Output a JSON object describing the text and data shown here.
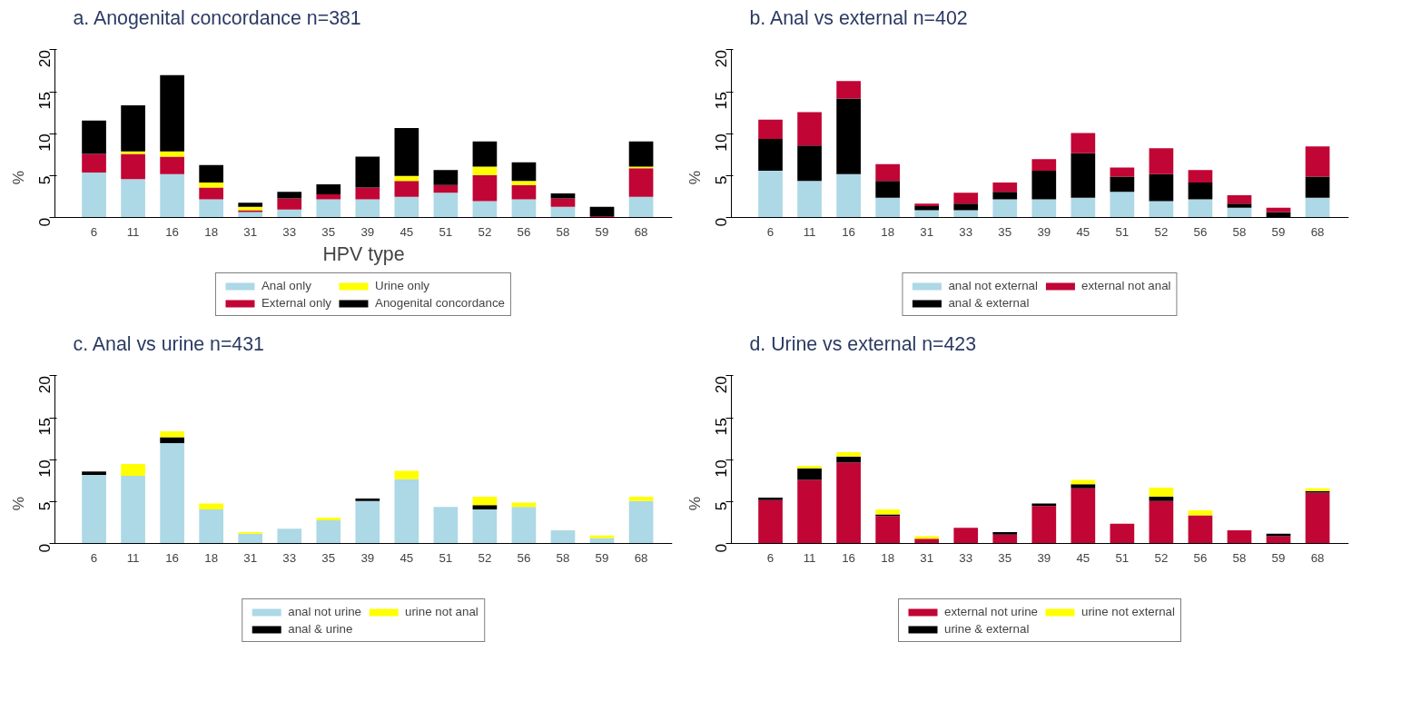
{
  "chart_data": [
    {
      "type": "bar",
      "stacked": true,
      "title": "a. Anogenital concordance n=381",
      "xlabel": "HPV type",
      "ylabel": "%",
      "categories": [
        "6",
        "11",
        "16",
        "18",
        "31",
        "33",
        "35",
        "39",
        "45",
        "51",
        "52",
        "56",
        "58",
        "59",
        "68"
      ],
      "ylim": [
        0,
        20
      ],
      "yticks": [
        0,
        5,
        10,
        15,
        20
      ],
      "legend": "bottom",
      "series": [
        {
          "name": "Anal only",
          "color": "#add8e6",
          "values": [
            5.4,
            4.6,
            5.2,
            2.2,
            0.7,
            1.0,
            2.2,
            2.2,
            2.5,
            3.0,
            2.0,
            2.2,
            1.3,
            0,
            2.5
          ]
        },
        {
          "name": "External only",
          "color": "#c10534",
          "values": [
            2.2,
            3.0,
            2.1,
            1.4,
            0.2,
            1.3,
            0.6,
            1.4,
            1.9,
            0.9,
            3.1,
            1.7,
            1.0,
            0.2,
            3.4
          ]
        },
        {
          "name": "Urine only",
          "color": "#ffff00",
          "values": [
            0,
            0.3,
            0.6,
            0.6,
            0.4,
            0,
            0,
            0,
            0.6,
            0,
            1.0,
            0.5,
            0,
            0,
            0.2
          ]
        },
        {
          "name": "Anogenital concordance",
          "color": "#000000",
          "values": [
            4.0,
            5.5,
            9.1,
            2.1,
            0.5,
            0.8,
            1.2,
            3.7,
            5.7,
            1.8,
            3.0,
            2.2,
            0.6,
            1.1,
            3.0
          ]
        }
      ]
    },
    {
      "type": "bar",
      "stacked": true,
      "title": "b. Anal vs external n=402",
      "ylabel": "%",
      "categories": [
        "6",
        "11",
        "16",
        "18",
        "31",
        "33",
        "35",
        "39",
        "45",
        "51",
        "52",
        "56",
        "58",
        "59",
        "68"
      ],
      "ylim": [
        0,
        20
      ],
      "yticks": [
        0,
        5,
        10,
        15,
        20
      ],
      "legend": "bottom",
      "series": [
        {
          "name": "anal not external",
          "color": "#add8e6",
          "values": [
            5.6,
            4.4,
            5.2,
            2.4,
            0.9,
            0.9,
            2.2,
            2.2,
            2.4,
            3.1,
            2.0,
            2.2,
            1.2,
            0,
            2.4
          ]
        },
        {
          "name": "anal & external",
          "color": "#000000",
          "values": [
            3.8,
            4.2,
            9.0,
            2.0,
            0.5,
            0.8,
            0.9,
            3.4,
            5.3,
            1.8,
            3.2,
            2.0,
            0.5,
            0.7,
            2.5
          ]
        },
        {
          "name": "external not anal",
          "color": "#c10534",
          "values": [
            2.3,
            4.0,
            2.1,
            2.0,
            0.3,
            1.3,
            1.1,
            1.4,
            2.4,
            1.1,
            3.1,
            1.5,
            1.0,
            0.5,
            3.6
          ]
        }
      ]
    },
    {
      "type": "bar",
      "stacked": true,
      "title": "c. Anal vs urine n=431",
      "ylabel": "%",
      "categories": [
        "6",
        "11",
        "16",
        "18",
        "31",
        "33",
        "35",
        "39",
        "45",
        "51",
        "52",
        "56",
        "58",
        "59",
        "68"
      ],
      "ylim": [
        0,
        20
      ],
      "yticks": [
        0,
        5,
        10,
        15,
        20
      ],
      "legend": "bottom",
      "series": [
        {
          "name": "anal not urine",
          "color": "#add8e6",
          "values": [
            8.2,
            8.1,
            12.0,
            4.1,
            1.2,
            1.8,
            2.8,
            5.1,
            7.7,
            4.4,
            4.1,
            4.4,
            1.6,
            0.7,
            5.1
          ]
        },
        {
          "name": "anal & urine",
          "color": "#000000",
          "values": [
            0.4,
            0,
            0.7,
            0,
            0,
            0,
            0,
            0.3,
            0,
            0,
            0.5,
            0,
            0,
            0,
            0
          ]
        },
        {
          "name": "urine not anal",
          "color": "#ffff00",
          "values": [
            0,
            1.4,
            0.7,
            0.7,
            0.2,
            0,
            0.3,
            0,
            1.0,
            0,
            1.0,
            0.5,
            0,
            0.3,
            0.5
          ]
        }
      ]
    },
    {
      "type": "bar",
      "stacked": true,
      "title": "d. Urine vs external n=423",
      "ylabel": "%",
      "categories": [
        "6",
        "11",
        "16",
        "18",
        "31",
        "33",
        "35",
        "39",
        "45",
        "51",
        "52",
        "56",
        "58",
        "59",
        "68"
      ],
      "ylim": [
        0,
        20
      ],
      "yticks": [
        0,
        5,
        10,
        15,
        20
      ],
      "legend": "bottom",
      "series": [
        {
          "name": "external not urine",
          "color": "#c10534",
          "values": [
            5.2,
            7.6,
            9.7,
            3.3,
            0.6,
            1.9,
            1.1,
            4.5,
            6.6,
            2.4,
            5.1,
            3.4,
            1.6,
            0.9,
            6.1
          ]
        },
        {
          "name": "urine & external",
          "color": "#000000",
          "values": [
            0.3,
            1.4,
            0.7,
            0.2,
            0,
            0,
            0.3,
            0.3,
            0.5,
            0,
            0.5,
            0,
            0,
            0.3,
            0.2
          ]
        },
        {
          "name": "urine not external",
          "color": "#ffff00",
          "values": [
            0,
            0.3,
            0.5,
            0.6,
            0.3,
            0,
            0,
            0,
            0.5,
            0,
            1.1,
            0.6,
            0,
            0,
            0.3
          ]
        }
      ]
    }
  ]
}
